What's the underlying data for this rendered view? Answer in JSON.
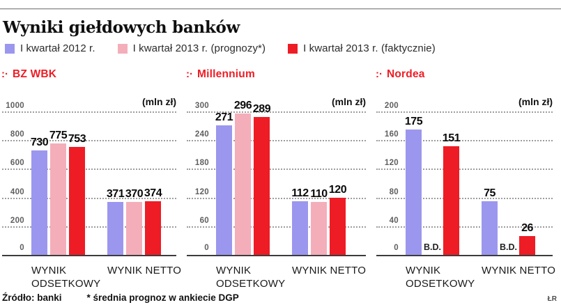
{
  "title": "Wyniki giełdowych banków",
  "panel_bullet": ":·",
  "legend": {
    "items": [
      {
        "label": "I kwartał 2012 r.",
        "color": "#9b97ee"
      },
      {
        "label": "I kwartał 2013 r. (prognozy*)",
        "color": "#f4aeba"
      },
      {
        "label": "I kwartał 2013 r. (faktycznie)",
        "color": "#ee1c25"
      }
    ]
  },
  "accent_red": "#ee1c25",
  "footer": {
    "source": "Źródło: banki",
    "footnote": "* średnia prognoz w ankiecie DGP",
    "credit": "ŁR"
  },
  "chart_data": [
    {
      "type": "bar",
      "title": "BZ WBK",
      "unit_label": "(mln zł)",
      "ylim": [
        0,
        1000
      ],
      "yticks": [
        1000,
        800,
        600,
        400,
        200,
        0
      ],
      "categories": [
        "WYNIK ODSETKOWY",
        "WYNIK NETTO"
      ],
      "series": [
        {
          "name": "I kwartał 2012 r.",
          "values": [
            730,
            371
          ]
        },
        {
          "name": "I kwartał 2013 r. (prognozy*)",
          "values": [
            775,
            370
          ]
        },
        {
          "name": "I kwartał 2013 r. (faktycznie)",
          "values": [
            753,
            374
          ]
        }
      ],
      "missing_label": "B.D.",
      "grid": "dotted",
      "legend_position": "top"
    },
    {
      "type": "bar",
      "title": "Millennium",
      "unit_label": "(mln zł)",
      "ylim": [
        0,
        300
      ],
      "yticks": [
        300,
        240,
        180,
        120,
        60,
        0
      ],
      "categories": [
        "WYNIK ODSETKOWY",
        "WYNIK NETTO"
      ],
      "series": [
        {
          "name": "I kwartał 2012 r.",
          "values": [
            271,
            112
          ]
        },
        {
          "name": "I kwartał 2013 r. (prognozy*)",
          "values": [
            296,
            110
          ]
        },
        {
          "name": "I kwartał 2013 r. (faktycznie)",
          "values": [
            289,
            120
          ]
        }
      ],
      "missing_label": "B.D.",
      "grid": "dotted",
      "legend_position": "top"
    },
    {
      "type": "bar",
      "title": "Nordea",
      "unit_label": "(mln zł)",
      "ylim": [
        0,
        200
      ],
      "yticks": [
        200,
        160,
        120,
        80,
        40,
        0
      ],
      "categories": [
        "WYNIK ODSETKOWY",
        "WYNIK NETTO"
      ],
      "series": [
        {
          "name": "I kwartał 2012 r.",
          "values": [
            175,
            75
          ]
        },
        {
          "name": "I kwartał 2013 r. (prognozy*)",
          "values": [
            null,
            null
          ]
        },
        {
          "name": "I kwartał 2013 r. (faktycznie)",
          "values": [
            151,
            26
          ]
        }
      ],
      "missing_label": "B.D.",
      "grid": "dotted",
      "legend_position": "top"
    }
  ]
}
